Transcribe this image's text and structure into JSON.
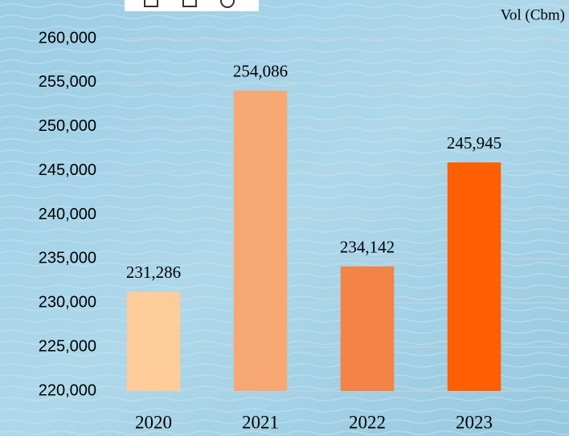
{
  "chart_data": {
    "type": "bar",
    "y_axis_label": "Vol (Cbm)",
    "categories": [
      "2020",
      "2021",
      "2022",
      "2023"
    ],
    "values": [
      231286,
      254086,
      234142,
      245945
    ],
    "value_labels": [
      "231,286",
      "254,086",
      "234,142",
      "245,945"
    ],
    "colors": [
      "#fdcc9a",
      "#f7a872",
      "#f38346",
      "#ff5f00"
    ],
    "ylim": [
      220000,
      260000
    ],
    "yticks": [
      {
        "value": 220000,
        "label": "220,000"
      },
      {
        "value": 225000,
        "label": "225,000"
      },
      {
        "value": 230000,
        "label": "230,000"
      },
      {
        "value": 235000,
        "label": "235,000"
      },
      {
        "value": 240000,
        "label": "240,000"
      },
      {
        "value": 245000,
        "label": "245,000"
      },
      {
        "value": 250000,
        "label": "250,000"
      },
      {
        "value": 255000,
        "label": "255,000"
      },
      {
        "value": 260000,
        "label": "260,000"
      }
    ],
    "grid": true
  }
}
